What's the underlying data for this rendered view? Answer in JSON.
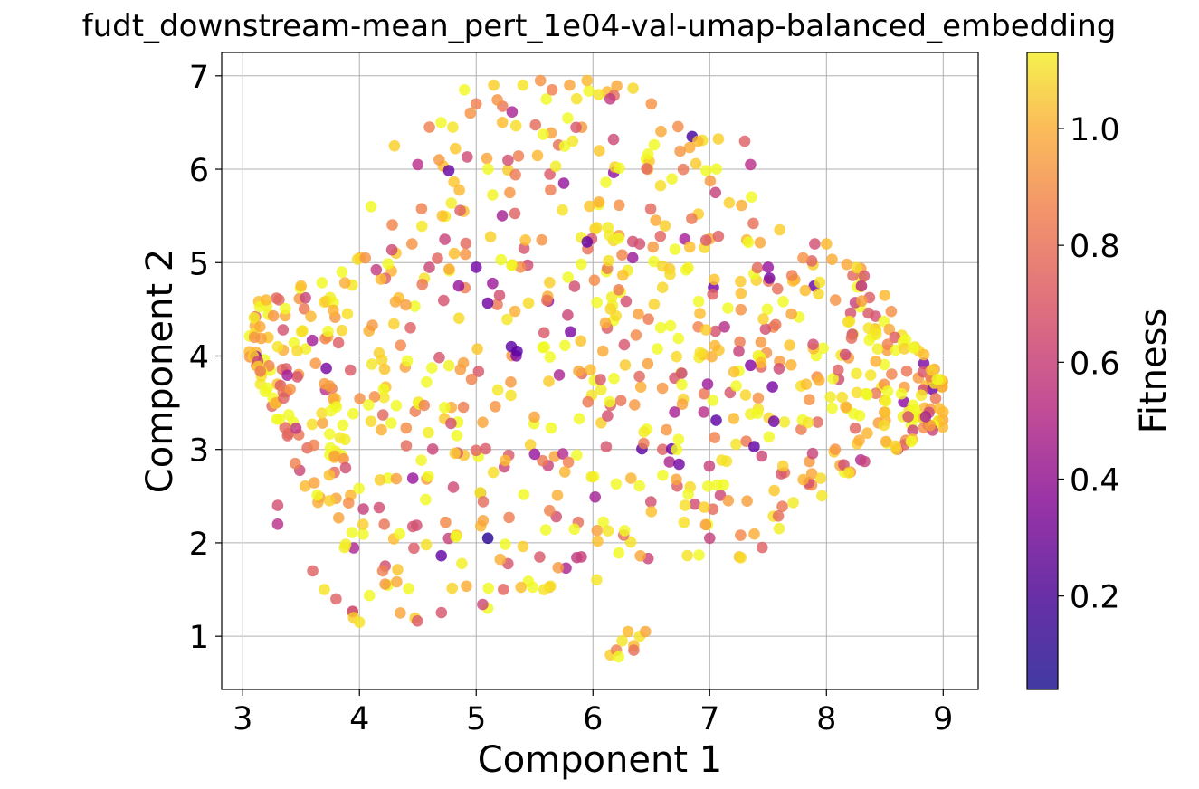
{
  "chart_data": {
    "type": "scatter",
    "title": "fudt_downstream-mean_pert_1e04-val-umap-balanced_embedding",
    "xlabel": "Component 1",
    "ylabel": "Component 2",
    "xlim": [
      2.82,
      9.3
    ],
    "ylim": [
      0.43,
      7.25
    ],
    "xticks": [
      3,
      4,
      5,
      6,
      7,
      8,
      9
    ],
    "yticks": [
      1,
      2,
      3,
      4,
      5,
      6,
      7
    ],
    "xtick_labels": [
      "3",
      "4",
      "5",
      "6",
      "7",
      "8",
      "9"
    ],
    "ytick_labels": [
      "1",
      "2",
      "3",
      "4",
      "5",
      "6",
      "7"
    ],
    "grid": true,
    "colormap": "plasma",
    "colorbar": {
      "label": "Fitness",
      "range": [
        0.04,
        1.13
      ],
      "ticks": [
        0.2,
        0.4,
        0.6,
        0.8,
        1.0
      ],
      "tick_labels": [
        "0.2",
        "0.4",
        "0.6",
        "0.8",
        "1.0"
      ]
    },
    "point_count_estimate": 900,
    "points": [
      {
        "x": 3.1,
        "y": 4.2,
        "c": 0.75
      },
      {
        "x": 3.2,
        "y": 4.6,
        "c": 0.85
      },
      {
        "x": 3.3,
        "y": 4.1,
        "c": 0.95
      },
      {
        "x": 3.35,
        "y": 3.55,
        "c": 0.6
      },
      {
        "x": 3.3,
        "y": 2.4,
        "c": 0.55
      },
      {
        "x": 3.3,
        "y": 2.2,
        "c": 0.45
      },
      {
        "x": 3.45,
        "y": 2.85,
        "c": 0.7
      },
      {
        "x": 3.5,
        "y": 4.75,
        "c": 0.85
      },
      {
        "x": 3.6,
        "y": 1.7,
        "c": 0.6
      },
      {
        "x": 3.7,
        "y": 1.5,
        "c": 0.95
      },
      {
        "x": 3.8,
        "y": 1.4,
        "c": 0.6
      },
      {
        "x": 3.85,
        "y": 4.9,
        "c": 1.0
      },
      {
        "x": 3.95,
        "y": 1.2,
        "c": 0.9
      },
      {
        "x": 4.0,
        "y": 1.15,
        "c": 0.95
      },
      {
        "x": 4.05,
        "y": 5.05,
        "c": 0.75
      },
      {
        "x": 4.1,
        "y": 5.6,
        "c": 1.0
      },
      {
        "x": 4.2,
        "y": 1.7,
        "c": 0.7
      },
      {
        "x": 4.3,
        "y": 6.25,
        "c": 0.9
      },
      {
        "x": 4.35,
        "y": 1.25,
        "c": 0.8
      },
      {
        "x": 4.45,
        "y": 5.2,
        "c": 0.75
      },
      {
        "x": 4.5,
        "y": 6.05,
        "c": 0.45
      },
      {
        "x": 4.6,
        "y": 6.45,
        "c": 0.7
      },
      {
        "x": 4.7,
        "y": 6.5,
        "c": 1.05
      },
      {
        "x": 4.8,
        "y": 6.45,
        "c": 0.95
      },
      {
        "x": 4.85,
        "y": 4.75,
        "c": 0.35
      },
      {
        "x": 4.9,
        "y": 6.85,
        "c": 1.0
      },
      {
        "x": 4.95,
        "y": 6.6,
        "c": 0.75
      },
      {
        "x": 5.0,
        "y": 6.7,
        "c": 0.7
      },
      {
        "x": 5.0,
        "y": 4.95,
        "c": 0.25
      },
      {
        "x": 5.1,
        "y": 2.05,
        "c": 0.1
      },
      {
        "x": 5.15,
        "y": 6.9,
        "c": 0.9
      },
      {
        "x": 5.2,
        "y": 4.65,
        "c": 0.55
      },
      {
        "x": 5.3,
        "y": 4.1,
        "c": 0.2
      },
      {
        "x": 5.35,
        "y": 4.05,
        "c": 0.2
      },
      {
        "x": 5.4,
        "y": 6.9,
        "c": 0.95
      },
      {
        "x": 5.5,
        "y": 2.95,
        "c": 0.35
      },
      {
        "x": 5.55,
        "y": 6.95,
        "c": 0.75
      },
      {
        "x": 5.6,
        "y": 6.75,
        "c": 1.05
      },
      {
        "x": 5.65,
        "y": 6.85,
        "c": 0.7
      },
      {
        "x": 5.75,
        "y": 5.85,
        "c": 0.35
      },
      {
        "x": 5.8,
        "y": 6.9,
        "c": 0.8
      },
      {
        "x": 5.9,
        "y": 1.85,
        "c": 0.5
      },
      {
        "x": 5.95,
        "y": 6.95,
        "c": 0.85
      },
      {
        "x": 6.05,
        "y": 6.8,
        "c": 0.95
      },
      {
        "x": 6.15,
        "y": 0.8,
        "c": 0.9
      },
      {
        "x": 6.2,
        "y": 0.85,
        "c": 0.7
      },
      {
        "x": 6.25,
        "y": 0.95,
        "c": 0.95
      },
      {
        "x": 6.3,
        "y": 1.05,
        "c": 0.85
      },
      {
        "x": 6.35,
        "y": 0.9,
        "c": 0.85
      },
      {
        "x": 6.4,
        "y": 1.0,
        "c": 0.95
      },
      {
        "x": 6.45,
        "y": 1.05,
        "c": 0.8
      },
      {
        "x": 6.35,
        "y": 0.85,
        "c": 0.65
      },
      {
        "x": 6.22,
        "y": 0.78,
        "c": 1.0
      },
      {
        "x": 6.4,
        "y": 5.2,
        "c": 0.55
      },
      {
        "x": 6.5,
        "y": 6.7,
        "c": 0.75
      },
      {
        "x": 6.7,
        "y": 3.4,
        "c": 0.4
      },
      {
        "x": 6.85,
        "y": 6.35,
        "c": 0.15
      },
      {
        "x": 6.9,
        "y": 6.3,
        "c": 0.85
      },
      {
        "x": 6.95,
        "y": 3.4,
        "c": 0.45
      },
      {
        "x": 7.0,
        "y": 2.05,
        "c": 0.5
      },
      {
        "x": 7.05,
        "y": 5.75,
        "c": 0.5
      },
      {
        "x": 7.25,
        "y": 4.05,
        "c": 0.5
      },
      {
        "x": 7.3,
        "y": 6.3,
        "c": 0.6
      },
      {
        "x": 7.35,
        "y": 6.05,
        "c": 0.45
      },
      {
        "x": 7.35,
        "y": 3.9,
        "c": 0.3
      },
      {
        "x": 7.45,
        "y": 1.95,
        "c": 0.6
      },
      {
        "x": 7.5,
        "y": 4.95,
        "c": 0.35
      },
      {
        "x": 7.55,
        "y": 3.3,
        "c": 0.25
      },
      {
        "x": 7.6,
        "y": 5.35,
        "c": 0.9
      },
      {
        "x": 7.7,
        "y": 4.45,
        "c": 0.8
      },
      {
        "x": 7.8,
        "y": 5.05,
        "c": 0.75
      },
      {
        "x": 7.9,
        "y": 5.2,
        "c": 0.55
      },
      {
        "x": 8.0,
        "y": 5.2,
        "c": 0.85
      },
      {
        "x": 8.1,
        "y": 3.85,
        "c": 0.6
      },
      {
        "x": 8.3,
        "y": 4.75,
        "c": 0.45
      },
      {
        "x": 8.5,
        "y": 4.65,
        "c": 0.85
      },
      {
        "x": 8.6,
        "y": 3.0,
        "c": 0.9
      },
      {
        "x": 8.7,
        "y": 3.35,
        "c": 0.55
      },
      {
        "x": 8.85,
        "y": 3.35,
        "c": 0.4
      },
      {
        "x": 8.9,
        "y": 3.85,
        "c": 0.9
      },
      {
        "x": 8.95,
        "y": 3.75,
        "c": 1.05
      },
      {
        "x": 9.0,
        "y": 3.4,
        "c": 0.85
      }
    ]
  }
}
